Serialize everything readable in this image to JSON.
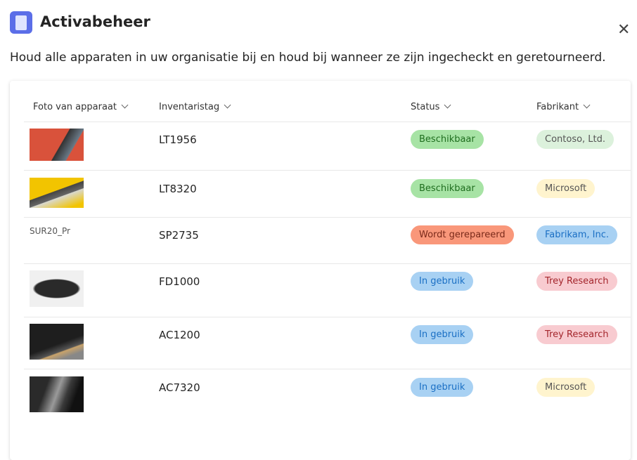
{
  "header": {
    "title": "Activabeheer",
    "description": "Houd alle apparaten in uw organisatie bij en houd bij wanneer ze zijn ingecheckt en geretourneerd."
  },
  "table": {
    "columns": [
      "Foto van apparaat",
      "Inventaristag",
      "Status",
      "Fabrikant"
    ],
    "rows": [
      {
        "tag": "LT1956",
        "status": "Beschikbaar",
        "manufacturer": "Contoso, Ltd."
      },
      {
        "tag": "LT8320",
        "status": "Beschikbaar",
        "manufacturer": "Microsoft"
      },
      {
        "photo_alt": "SUR20_Pr",
        "tag": "SP2735",
        "status": "Wordt gerepareerd",
        "manufacturer": "Fabrikam, Inc."
      },
      {
        "tag": "FD1000",
        "status": "In gebruik",
        "manufacturer": "Trey Research"
      },
      {
        "tag": "AC1200",
        "status": "In gebruik",
        "manufacturer": "Trey Research"
      },
      {
        "tag": "AC7320",
        "status": "In gebruik",
        "manufacturer": "Microsoft"
      }
    ]
  }
}
